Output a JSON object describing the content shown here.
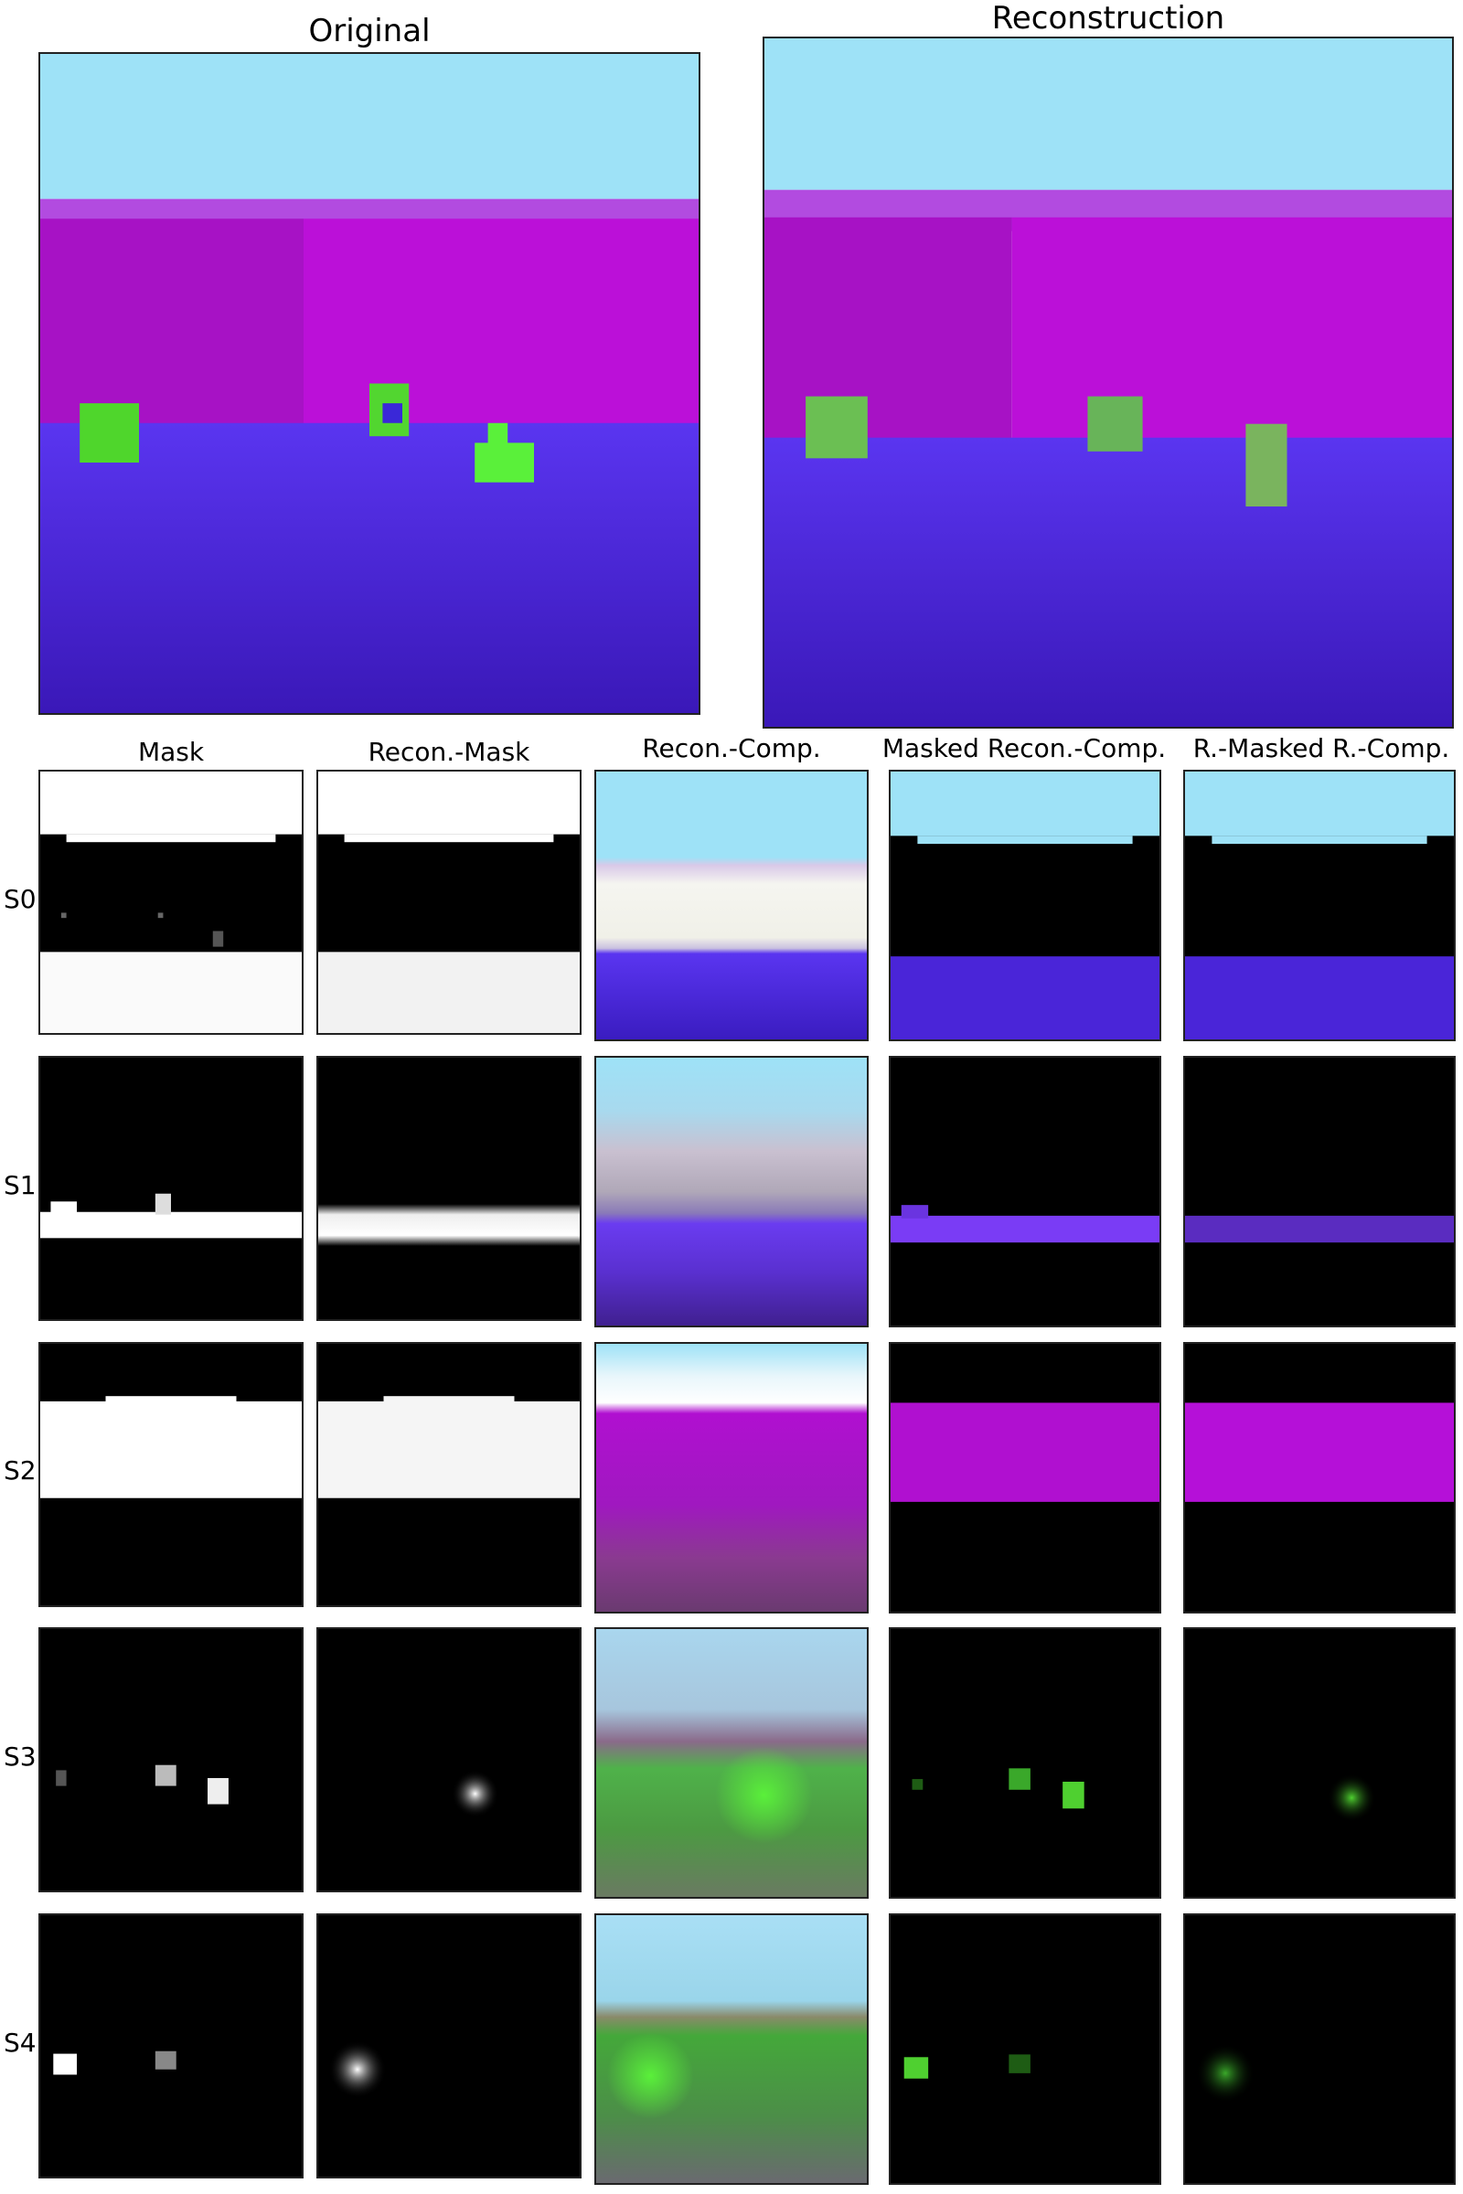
{
  "figure": {
    "titles": {
      "original": "Original",
      "reconstruction": "Reconstruction"
    },
    "columns": [
      "Mask",
      "Recon.-Mask",
      "Recon.-Comp.",
      "Masked Recon.-Comp.",
      "R.-Masked R.-Comp."
    ],
    "rows": [
      "S0",
      "S1",
      "S2",
      "S3",
      "S4"
    ],
    "colors": {
      "sky": "#9ee2f7",
      "wall": "#b00fd0",
      "floor": "#4b22e0",
      "object": "#5af03a",
      "black": "#000000",
      "white": "#ffffff"
    }
  }
}
